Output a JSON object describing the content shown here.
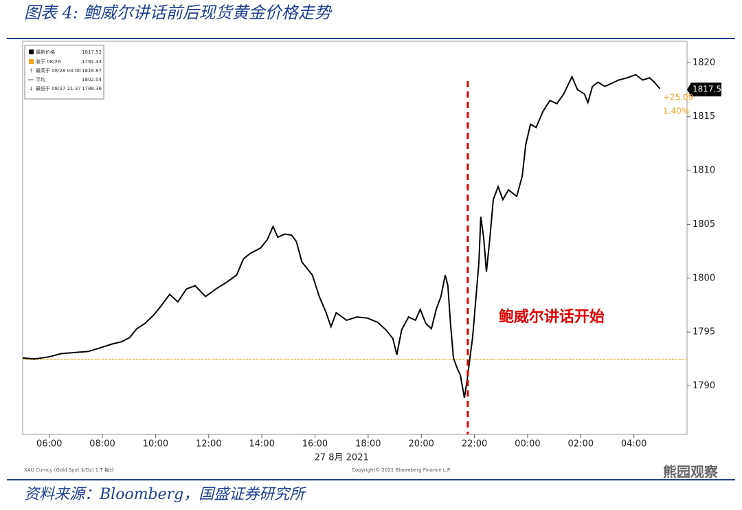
{
  "title": "图表 4: 鲍威尔讲话前后现货黄金价格走势",
  "source": "资料来源：Bloomberg，国盛证券研究所",
  "watermark": "熊园观察",
  "chart_data": {
    "type": "line",
    "x_label": "27 8月 2021",
    "x": [
      5.0,
      5.44,
      6.0,
      6.44,
      6.96,
      7.48,
      8.0,
      8.38,
      8.72,
      9.03,
      9.29,
      9.6,
      9.94,
      10.2,
      10.53,
      10.84,
      11.16,
      11.49,
      11.88,
      12.27,
      12.66,
      13.05,
      13.31,
      13.56,
      13.95,
      14.21,
      14.42,
      14.6,
      14.86,
      15.12,
      15.3,
      15.51,
      15.9,
      16.16,
      16.42,
      16.6,
      16.8,
      17.19,
      17.58,
      17.97,
      18.36,
      18.67,
      18.93,
      19.08,
      19.26,
      19.52,
      19.78,
      19.96,
      20.17,
      20.38,
      20.56,
      20.74,
      20.9,
      21.0,
      21.1,
      21.21,
      21.34,
      21.47,
      21.62,
      21.72,
      21.83,
      21.93,
      22.04,
      22.17,
      22.24,
      22.35,
      22.45,
      22.58,
      22.71,
      22.89,
      23.07,
      23.28,
      23.59,
      23.8,
      23.93,
      24.11,
      24.32,
      24.58,
      24.84,
      25.1,
      25.36,
      25.67,
      25.88,
      26.14,
      26.27,
      26.44,
      26.65,
      26.91,
      27.17,
      27.43,
      27.74,
      28.07,
      28.33,
      28.59,
      28.77,
      28.98
    ],
    "series": [
      {
        "name": "最新价格",
        "color": "#000000",
        "values": [
          1792.6,
          1792.5,
          1792.7,
          1793.0,
          1793.1,
          1793.2,
          1793.6,
          1793.9,
          1794.1,
          1794.5,
          1795.3,
          1795.8,
          1796.6,
          1797.4,
          1798.5,
          1797.8,
          1799.0,
          1799.3,
          1798.3,
          1799.0,
          1799.6,
          1800.3,
          1801.8,
          1802.3,
          1802.8,
          1803.6,
          1804.8,
          1803.8,
          1804.1,
          1804.0,
          1803.4,
          1801.5,
          1800.3,
          1798.3,
          1796.8,
          1795.5,
          1796.8,
          1796.1,
          1796.4,
          1796.3,
          1795.9,
          1795.2,
          1794.4,
          1792.9,
          1795.2,
          1796.4,
          1796.1,
          1797.1,
          1795.8,
          1795.3,
          1797.1,
          1798.3,
          1800.3,
          1799.3,
          1795.8,
          1792.6,
          1791.7,
          1791.0,
          1788.9,
          1790.4,
          1792.6,
          1794.5,
          1797.7,
          1801.5,
          1805.7,
          1803.7,
          1800.6,
          1803.7,
          1807.3,
          1808.5,
          1807.3,
          1808.2,
          1807.6,
          1809.5,
          1812.4,
          1814.3,
          1814.0,
          1815.5,
          1816.5,
          1816.2,
          1817.1,
          1818.7,
          1817.5,
          1817.1,
          1816.3,
          1817.8,
          1818.2,
          1817.8,
          1818.1,
          1818.4,
          1818.6,
          1818.9,
          1818.4,
          1818.6,
          1818.2,
          1817.6
        ]
      }
    ],
    "xlim": [
      5,
      30
    ],
    "xticks": [
      {
        "value": 6,
        "label": "06:00"
      },
      {
        "value": 8,
        "label": "08:00"
      },
      {
        "value": 10,
        "label": "10:00"
      },
      {
        "value": 12,
        "label": "12:00"
      },
      {
        "value": 14,
        "label": "14:00"
      },
      {
        "value": 16,
        "label": "16:00"
      },
      {
        "value": 18,
        "label": "18:00"
      },
      {
        "value": 20,
        "label": "20:00"
      },
      {
        "value": 22,
        "label": "22:00"
      },
      {
        "value": 24,
        "label": "00:00"
      },
      {
        "value": 26,
        "label": "02:00"
      },
      {
        "value": 28,
        "label": "04:00"
      }
    ],
    "ylim": [
      1785.5,
      1822
    ],
    "yticks": [
      1790,
      1795,
      1800,
      1805,
      1810,
      1815,
      1820
    ],
    "reference": {
      "value": 1792.43,
      "color": "#f5a623"
    },
    "annotation": {
      "text": "鲍威尔讲话开始",
      "x": 21.75,
      "color": "#e00000"
    },
    "last_value": 1817.52,
    "change_labels": [
      "+25.09",
      "1.40%"
    ],
    "legend": [
      {
        "label": "收于 08/26",
        "value": 1792.43
      },
      {
        "label": "最高于 08/28 04:00",
        "value": 1818.87
      },
      {
        "label": "平均",
        "value": 1802.04
      },
      {
        "label": "最低于 08/27 21:37",
        "value": 1788.36
      }
    ],
    "footer_left": "XAU Curncy (Gold Spot $/Oz) 1 T 每分",
    "footer_right": "Copyright© 2021 Bloomberg Finance L.P."
  }
}
